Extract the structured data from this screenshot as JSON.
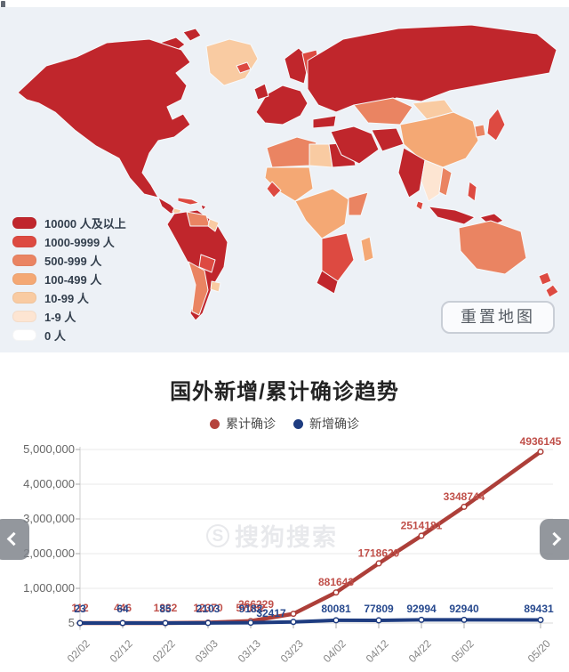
{
  "map": {
    "background_color": "#edf1f6",
    "legend": [
      {
        "level": "c7",
        "label": "10000 人及以上",
        "color": "#c0262c"
      },
      {
        "level": "c6",
        "label": "1000-9999 人",
        "color": "#dd4a41"
      },
      {
        "level": "c5",
        "label": "500-999 人",
        "color": "#ea8462"
      },
      {
        "level": "c4",
        "label": "100-499 人",
        "color": "#f4a874"
      },
      {
        "level": "c3",
        "label": "10-99 人",
        "color": "#f9cba2"
      },
      {
        "level": "c2",
        "label": "1-9 人",
        "color": "#fde5d2"
      },
      {
        "level": "c1",
        "label": "0 人",
        "color": "#ffffff"
      }
    ],
    "reset_button_label": "重置地图"
  },
  "trend": {
    "title": "国外新增/累计确诊趋势",
    "legend": [
      {
        "name": "累计确诊",
        "color": "#b5433c"
      },
      {
        "name": "新增确诊",
        "color": "#1e3c80"
      }
    ],
    "watermark": {
      "icon": "sogou-s-circle-icon",
      "text": "搜狗搜索"
    },
    "nav": {
      "prev_icon": "chevron-left-icon",
      "next_icon": "chevron-right-icon"
    },
    "chart_data": {
      "type": "line",
      "x": [
        "02/02",
        "02/12",
        "02/22",
        "03/03",
        "03/13",
        "03/23",
        "04/02",
        "04/12",
        "04/22",
        "05/02",
        "05/20"
      ],
      "series": [
        {
          "name": "累计确诊",
          "color": "#ad3f39",
          "label_color": "#c0504a",
          "values": [
            112,
            446,
            1332,
            12370,
            57182,
            266229,
            881643,
            1718629,
            2514181,
            3348744,
            4936145
          ]
        },
        {
          "name": "新增确诊",
          "color": "#1e3c80",
          "label_color": "#27498e",
          "values": [
            23,
            64,
            85,
            2103,
            9182,
            32417,
            80081,
            77809,
            92994,
            92940,
            89431
          ]
        }
      ],
      "ylabels": [
        "5,000,000",
        "4,000,000",
        "3,000,000",
        "2,000,000",
        "1,000,000",
        "5"
      ],
      "ylim": [
        5,
        5000000
      ],
      "grid": true,
      "legend_position": "top",
      "xlabel": "",
      "ylabel": ""
    }
  }
}
